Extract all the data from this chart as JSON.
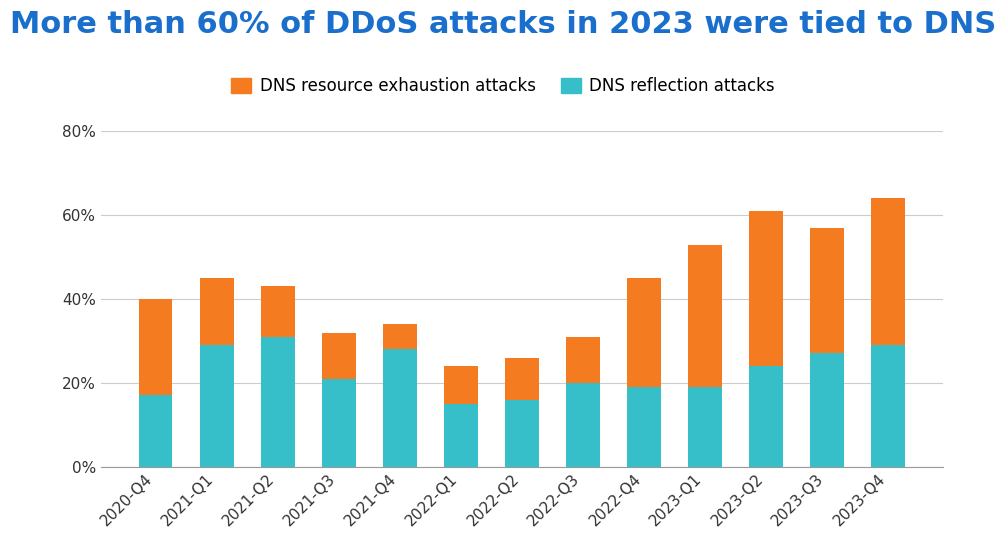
{
  "title": "More than 60% of DDoS attacks in 2023 were tied to DNS",
  "title_color": "#1B6FCC",
  "categories": [
    "2020-Q4",
    "2021-Q1",
    "2021-Q2",
    "2021-Q3",
    "2021-Q4",
    "2022-Q1",
    "2022-Q2",
    "2022-Q3",
    "2022-Q4",
    "2023-Q1",
    "2023-Q2",
    "2023-Q3",
    "2023-Q4"
  ],
  "reflection": [
    17,
    29,
    31,
    21,
    28,
    15,
    16,
    20,
    19,
    19,
    24,
    27,
    29
  ],
  "exhaustion": [
    23,
    16,
    12,
    11,
    6,
    9,
    10,
    11,
    26,
    34,
    37,
    30,
    35
  ],
  "color_reflection": "#36BFC8",
  "color_exhaustion": "#F47B20",
  "legend_exhaustion": "DNS resource exhaustion attacks",
  "legend_reflection": "DNS reflection attacks",
  "ylim": [
    0,
    80
  ],
  "yticks": [
    0,
    20,
    40,
    60,
    80
  ],
  "ytick_labels": [
    "0%",
    "20%",
    "40%",
    "60%",
    "80%"
  ],
  "background_color": "#FFFFFF",
  "grid_color": "#CCCCCC",
  "title_fontsize": 22,
  "legend_fontsize": 12,
  "tick_fontsize": 11
}
